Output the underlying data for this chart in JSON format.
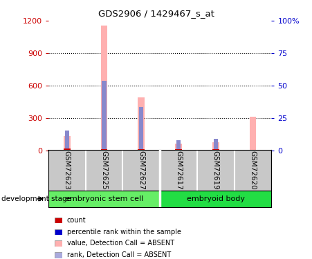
{
  "title": "GDS2906 / 1429467_s_at",
  "samples": [
    "GSM72623",
    "GSM72625",
    "GSM72627",
    "GSM72617",
    "GSM72619",
    "GSM72620"
  ],
  "groups": [
    {
      "name": "embryonic stem cell",
      "indices": [
        0,
        1,
        2
      ],
      "color": "#66ee66"
    },
    {
      "name": "embryoid body",
      "indices": [
        3,
        4,
        5
      ],
      "color": "#22dd44"
    }
  ],
  "pink_values": [
    130,
    1155,
    490,
    60,
    75,
    310
  ],
  "blue_values": [
    185,
    645,
    400,
    90,
    105,
    0
  ],
  "red_values": [
    15,
    8,
    10,
    12,
    10,
    0
  ],
  "ylim_left": [
    0,
    1200
  ],
  "ylim_right": [
    0,
    100
  ],
  "yticks_left": [
    0,
    300,
    600,
    900,
    1200
  ],
  "yticks_right": [
    0,
    25,
    50,
    75,
    100
  ],
  "yticklabels_right": [
    "0",
    "25",
    "50",
    "75",
    "100%"
  ],
  "left_axis_color": "#cc0000",
  "right_axis_color": "#0000cc",
  "pink_color": "#ffb0b0",
  "blue_color": "#8888cc",
  "red_color": "#cc0000",
  "label_bg": "#c8c8c8",
  "dev_stage_label": "development stage",
  "legend_items": [
    {
      "label": "count",
      "color": "#cc0000"
    },
    {
      "label": "percentile rank within the sample",
      "color": "#0000cc"
    },
    {
      "label": "value, Detection Call = ABSENT",
      "color": "#ffb0b0"
    },
    {
      "label": "rank, Detection Call = ABSENT",
      "color": "#aaaadd"
    }
  ]
}
